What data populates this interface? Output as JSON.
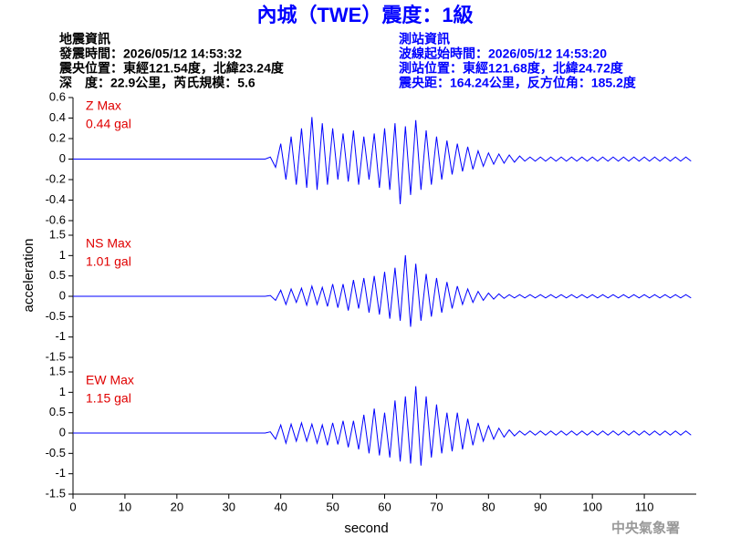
{
  "header": {
    "title": "內城（TWE）震度：1級",
    "left": [
      "地震資訊",
      "發震時間：2026/05/12 14:53:32",
      "震央位置：東經121.54度，北緯23.24度",
      "深　度：22.9公里，芮氏規模：5.6"
    ],
    "right": [
      "測站資訊",
      "波線起始時間：2026/05/12 14:53:20",
      "測站位置：東經121.68度，北緯24.72度",
      "震央距：164.24公里，反方位角：185.2度"
    ],
    "ylabel": "acceleration",
    "watermark": "中央氣象署"
  },
  "chart_data": [
    {
      "type": "line",
      "max_label": "Z Max",
      "max_text": "0.44 gal",
      "color": "#0000ff",
      "xlim": [
        0,
        120
      ],
      "ylim": [
        -0.6,
        0.6
      ],
      "yticks": [
        -0.6,
        -0.4,
        -0.2,
        0,
        0.2,
        0.4,
        0.6
      ],
      "x": [
        0,
        1,
        2,
        3,
        4,
        5,
        6,
        7,
        8,
        9,
        10,
        11,
        12,
        13,
        14,
        15,
        16,
        17,
        18,
        19,
        20,
        21,
        22,
        23,
        24,
        25,
        26,
        27,
        28,
        29,
        30,
        31,
        32,
        33,
        34,
        35,
        36,
        37,
        38,
        39,
        40,
        41,
        42,
        43,
        44,
        45,
        46,
        47,
        48,
        49,
        50,
        51,
        52,
        53,
        54,
        55,
        56,
        57,
        58,
        59,
        60,
        61,
        62,
        63,
        64,
        65,
        66,
        67,
        68,
        69,
        70,
        71,
        72,
        73,
        74,
        75,
        76,
        77,
        78,
        79,
        80,
        81,
        82,
        83,
        84,
        85,
        86,
        87,
        88,
        89,
        90,
        91,
        92,
        93,
        94,
        95,
        96,
        97,
        98,
        99,
        100,
        101,
        102,
        103,
        104,
        105,
        106,
        107,
        108,
        109,
        110,
        111,
        112,
        113,
        114,
        115,
        116,
        117,
        118,
        119
      ],
      "values": [
        0,
        0,
        0,
        0,
        0,
        0,
        0,
        0,
        0,
        0,
        0,
        0,
        0,
        0,
        0,
        0,
        0,
        0,
        0,
        0,
        0,
        0,
        0,
        0,
        0,
        0,
        0,
        0,
        0,
        0,
        0,
        0,
        0,
        0,
        0,
        0,
        0,
        0,
        0.02,
        -0.08,
        0.15,
        -0.2,
        0.22,
        -0.25,
        0.3,
        -0.28,
        0.41,
        -0.3,
        0.35,
        -0.25,
        0.3,
        -0.2,
        0.25,
        -0.22,
        0.28,
        -0.25,
        0.22,
        -0.2,
        0.25,
        -0.28,
        0.3,
        -0.3,
        0.35,
        -0.44,
        0.32,
        -0.35,
        0.38,
        -0.3,
        0.28,
        -0.25,
        0.22,
        -0.2,
        0.18,
        -0.15,
        0.15,
        -0.12,
        0.12,
        -0.1,
        0.08,
        -0.07,
        0.06,
        -0.05,
        0.05,
        -0.04,
        0.04,
        -0.03,
        0.03,
        -0.02,
        0.02,
        -0.02,
        0.02,
        -0.02,
        0.02,
        -0.02,
        0.02,
        -0.02,
        0.02,
        -0.02,
        0.02,
        -0.02,
        0.02,
        -0.02,
        0.02,
        -0.02,
        0.02,
        -0.02,
        0.02,
        -0.02,
        0.02,
        -0.02,
        0.02,
        -0.02,
        0.02,
        -0.02,
        0.02,
        -0.02,
        0.02,
        -0.02,
        0.02,
        -0.02
      ]
    },
    {
      "type": "line",
      "max_label": "NS Max",
      "max_text": "1.01 gal",
      "color": "#0000ff",
      "xlim": [
        0,
        120
      ],
      "ylim": [
        -1.5,
        1.5
      ],
      "yticks": [
        -1.5,
        -1,
        -0.5,
        0,
        0.5,
        1,
        1.5
      ],
      "x": [
        0,
        1,
        2,
        3,
        4,
        5,
        6,
        7,
        8,
        9,
        10,
        11,
        12,
        13,
        14,
        15,
        16,
        17,
        18,
        19,
        20,
        21,
        22,
        23,
        24,
        25,
        26,
        27,
        28,
        29,
        30,
        31,
        32,
        33,
        34,
        35,
        36,
        37,
        38,
        39,
        40,
        41,
        42,
        43,
        44,
        45,
        46,
        47,
        48,
        49,
        50,
        51,
        52,
        53,
        54,
        55,
        56,
        57,
        58,
        59,
        60,
        61,
        62,
        63,
        64,
        65,
        66,
        67,
        68,
        69,
        70,
        71,
        72,
        73,
        74,
        75,
        76,
        77,
        78,
        79,
        80,
        81,
        82,
        83,
        84,
        85,
        86,
        87,
        88,
        89,
        90,
        91,
        92,
        93,
        94,
        95,
        96,
        97,
        98,
        99,
        100,
        101,
        102,
        103,
        104,
        105,
        106,
        107,
        108,
        109,
        110,
        111,
        112,
        113,
        114,
        115,
        116,
        117,
        118,
        119
      ],
      "values": [
        0,
        0,
        0,
        0,
        0,
        0,
        0,
        0,
        0,
        0,
        0,
        0,
        0,
        0,
        0,
        0,
        0,
        0,
        0,
        0,
        0,
        0,
        0,
        0,
        0,
        0,
        0,
        0,
        0,
        0,
        0,
        0,
        0,
        0,
        0,
        0,
        0,
        0,
        0.02,
        -0.1,
        0.15,
        -0.2,
        0.18,
        -0.15,
        0.2,
        -0.22,
        0.25,
        -0.2,
        0.22,
        -0.25,
        0.3,
        -0.28,
        0.3,
        -0.35,
        0.4,
        -0.3,
        0.45,
        -0.4,
        0.5,
        -0.45,
        0.6,
        -0.55,
        0.7,
        -0.6,
        1.01,
        -0.75,
        0.8,
        -0.6,
        0.55,
        -0.5,
        0.45,
        -0.4,
        0.35,
        -0.3,
        0.25,
        -0.2,
        0.18,
        -0.15,
        0.12,
        -0.1,
        0.08,
        -0.07,
        0.06,
        -0.05,
        0.04,
        -0.04,
        0.04,
        -0.04,
        0.04,
        -0.04,
        0.04,
        -0.04,
        0.04,
        -0.04,
        0.04,
        -0.04,
        0.04,
        -0.04,
        0.04,
        -0.04,
        0.04,
        -0.04,
        0.04,
        -0.04,
        0.04,
        -0.04,
        0.04,
        -0.04,
        0.04,
        -0.04,
        0.04,
        -0.04,
        0.04,
        -0.04,
        0.04,
        -0.04,
        0.04,
        -0.04,
        0.04,
        -0.04
      ]
    },
    {
      "type": "line",
      "max_label": "EW Max",
      "max_text": "1.15 gal",
      "color": "#0000ff",
      "xlim": [
        0,
        120
      ],
      "ylim": [
        -1.5,
        1.5
      ],
      "yticks": [
        -1.5,
        -1,
        -0.5,
        0,
        0.5,
        1,
        1.5
      ],
      "xticks": [
        0,
        10,
        20,
        30,
        40,
        50,
        60,
        70,
        80,
        90,
        100,
        110
      ],
      "xlabel": "second",
      "x": [
        0,
        1,
        2,
        3,
        4,
        5,
        6,
        7,
        8,
        9,
        10,
        11,
        12,
        13,
        14,
        15,
        16,
        17,
        18,
        19,
        20,
        21,
        22,
        23,
        24,
        25,
        26,
        27,
        28,
        29,
        30,
        31,
        32,
        33,
        34,
        35,
        36,
        37,
        38,
        39,
        40,
        41,
        42,
        43,
        44,
        45,
        46,
        47,
        48,
        49,
        50,
        51,
        52,
        53,
        54,
        55,
        56,
        57,
        58,
        59,
        60,
        61,
        62,
        63,
        64,
        65,
        66,
        67,
        68,
        69,
        70,
        71,
        72,
        73,
        74,
        75,
        76,
        77,
        78,
        79,
        80,
        81,
        82,
        83,
        84,
        85,
        86,
        87,
        88,
        89,
        90,
        91,
        92,
        93,
        94,
        95,
        96,
        97,
        98,
        99,
        100,
        101,
        102,
        103,
        104,
        105,
        106,
        107,
        108,
        109,
        110,
        111,
        112,
        113,
        114,
        115,
        116,
        117,
        118,
        119
      ],
      "values": [
        0,
        0,
        0,
        0,
        0,
        0,
        0,
        0,
        0,
        0,
        0,
        0,
        0,
        0,
        0,
        0,
        0,
        0,
        0,
        0,
        0,
        0,
        0,
        0,
        0,
        0,
        0,
        0,
        0,
        0,
        0,
        0,
        0,
        0,
        0,
        0,
        0,
        0,
        0.03,
        -0.15,
        0.2,
        -0.25,
        0.22,
        -0.2,
        0.25,
        -0.2,
        0.22,
        -0.25,
        0.2,
        -0.3,
        0.25,
        -0.28,
        0.3,
        -0.35,
        0.3,
        -0.4,
        0.45,
        -0.5,
        0.6,
        -0.55,
        0.5,
        -0.6,
        0.8,
        -0.7,
        0.9,
        -0.75,
        1.15,
        -0.8,
        0.9,
        -0.6,
        0.7,
        -0.5,
        0.5,
        -0.45,
        0.5,
        -0.4,
        0.35,
        -0.3,
        0.25,
        -0.2,
        0.18,
        -0.15,
        0.12,
        -0.1,
        0.08,
        -0.07,
        0.05,
        -0.05,
        0.05,
        -0.05,
        0.05,
        -0.05,
        0.05,
        -0.05,
        0.05,
        -0.05,
        0.05,
        -0.05,
        0.05,
        -0.05,
        0.05,
        -0.05,
        0.05,
        -0.05,
        0.05,
        -0.05,
        0.05,
        -0.05,
        0.05,
        -0.05,
        0.05,
        -0.05,
        0.05,
        -0.05,
        0.05,
        -0.05,
        0.05,
        -0.05,
        0.05,
        -0.05
      ]
    }
  ]
}
